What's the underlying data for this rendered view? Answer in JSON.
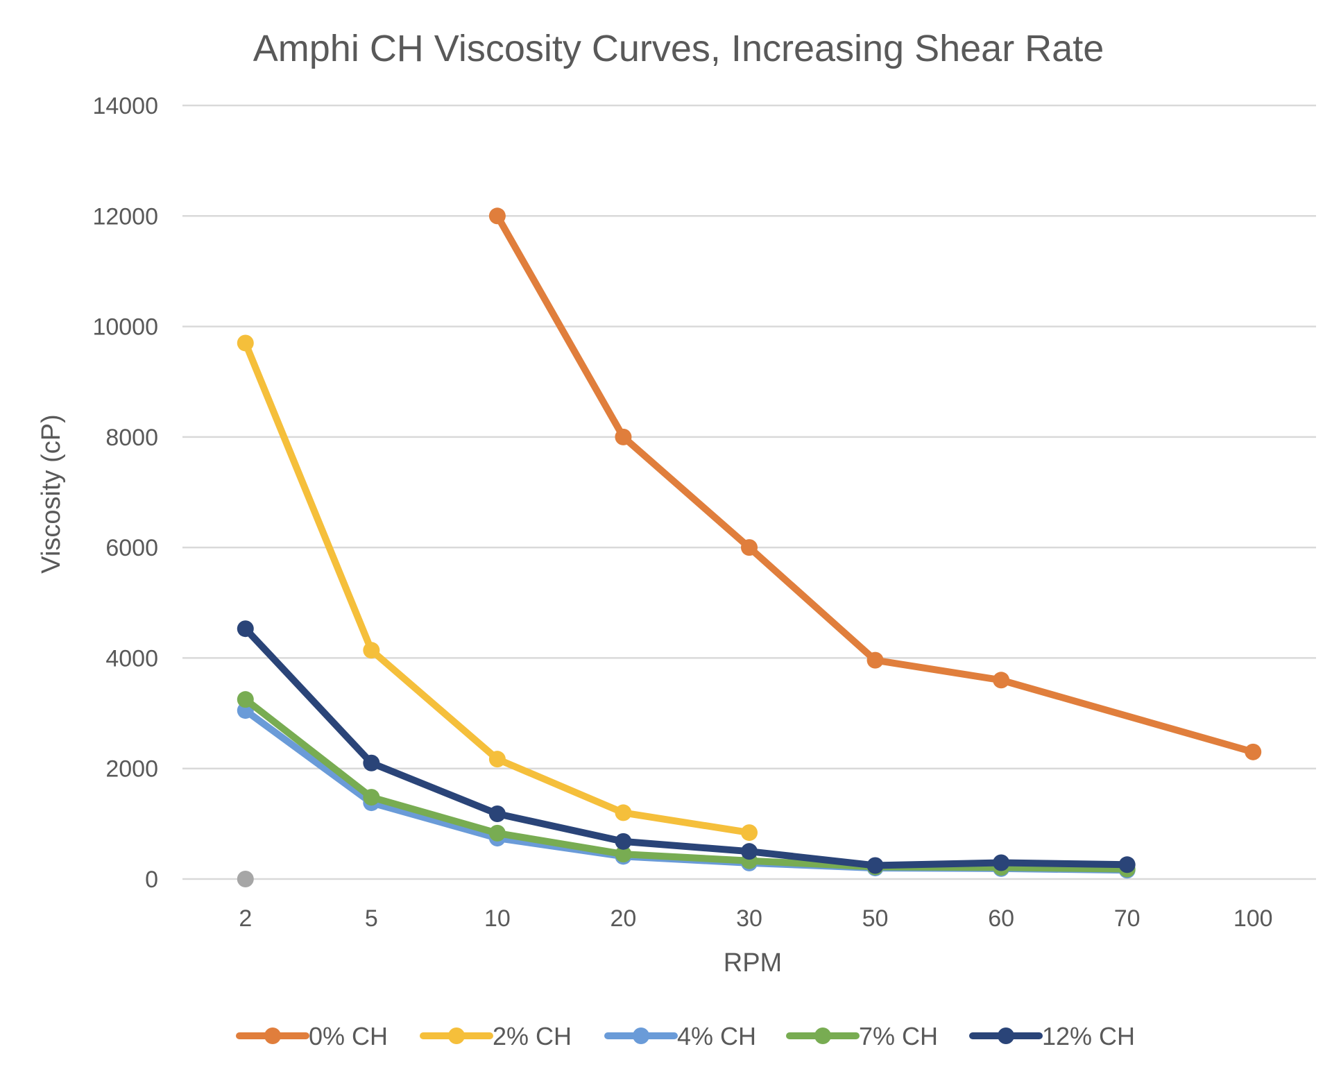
{
  "chart_data": {
    "type": "line",
    "title": "Amphi CH Viscosity Curves, Increasing Shear Rate",
    "xlabel": "RPM",
    "ylabel": "Viscosity (cP)",
    "categories": [
      "2",
      "5",
      "10",
      "20",
      "30",
      "50",
      "60",
      "70",
      "100"
    ],
    "ylim": [
      0,
      14000
    ],
    "yticks": [
      0,
      2000,
      4000,
      6000,
      8000,
      10000,
      12000,
      14000
    ],
    "ytick_labels": [
      "0",
      "2000",
      "4000",
      "6000",
      "8000",
      "10000",
      "12000",
      "14000"
    ],
    "grid": true,
    "legend_position": "bottom",
    "series": [
      {
        "name": "0% CH",
        "color": "#E07E3C",
        "values": [
          null,
          null,
          12000,
          8000,
          6000,
          3960,
          3600,
          null,
          2300
        ],
        "connect_gaps": true
      },
      {
        "name": "2% CH",
        "color": "#F5BF3B",
        "values": [
          9700,
          4140,
          2170,
          1200,
          840,
          null,
          null,
          null,
          null
        ],
        "connect_gaps": false
      },
      {
        "name": "4% CH",
        "color": "#6A9BD8",
        "values": [
          3050,
          1380,
          740,
          410,
          290,
          200,
          190,
          160,
          null
        ],
        "connect_gaps": false
      },
      {
        "name": "7% CH",
        "color": "#78AC52",
        "values": [
          3250,
          1480,
          830,
          450,
          330,
          220,
          210,
          180,
          null
        ],
        "connect_gaps": false
      },
      {
        "name": "12% CH",
        "color": "#2A4478",
        "values": [
          4530,
          2100,
          1180,
          680,
          500,
          245,
          295,
          260,
          null
        ],
        "connect_gaps": false
      }
    ],
    "extra_points": [
      {
        "category": "2",
        "value": 0,
        "color": "#A6A6A6"
      }
    ]
  }
}
